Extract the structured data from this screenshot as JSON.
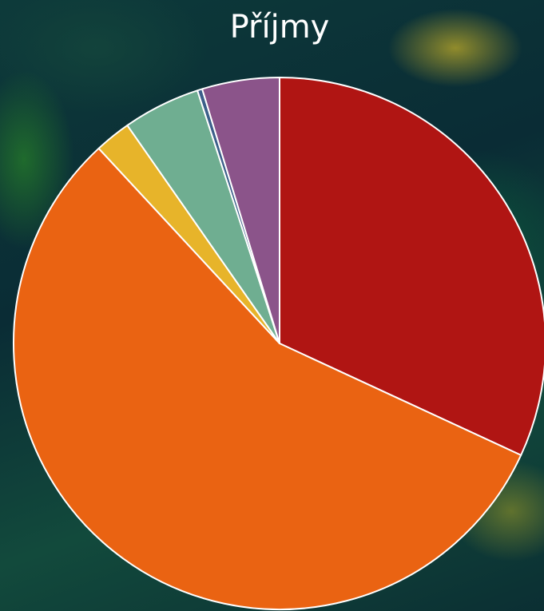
{
  "chart_data": {
    "type": "pie",
    "title": "Příjmy",
    "values": [
      31.9,
      56.2,
      2.2,
      4.7,
      0.3,
      4.7
    ],
    "colors": [
      "#b01513",
      "#ea6312",
      "#e7b42a",
      "#6fae91",
      "#3c5f8a",
      "#8b548a"
    ],
    "start_angle": 0,
    "direction": "clockwise"
  }
}
